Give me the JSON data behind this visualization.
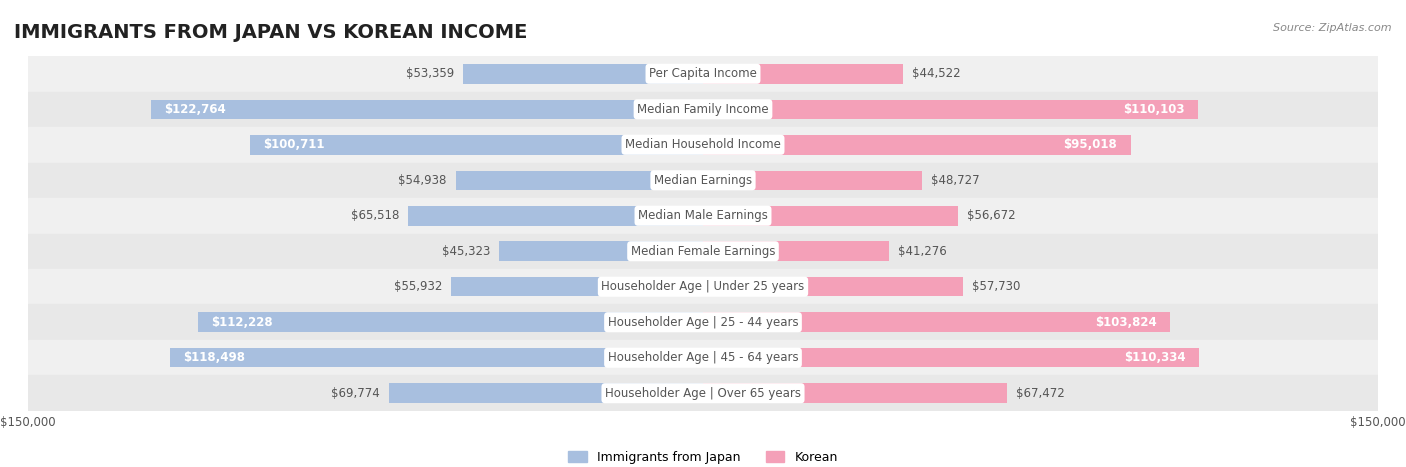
{
  "title": "IMMIGRANTS FROM JAPAN VS KOREAN INCOME",
  "source": "Source: ZipAtlas.com",
  "categories": [
    "Per Capita Income",
    "Median Family Income",
    "Median Household Income",
    "Median Earnings",
    "Median Male Earnings",
    "Median Female Earnings",
    "Householder Age | Under 25 years",
    "Householder Age | 25 - 44 years",
    "Householder Age | 45 - 64 years",
    "Householder Age | Over 65 years"
  ],
  "japan_values": [
    53359,
    122764,
    100711,
    54938,
    65518,
    45323,
    55932,
    112228,
    118498,
    69774
  ],
  "korean_values": [
    44522,
    110103,
    95018,
    48727,
    56672,
    41276,
    57730,
    103824,
    110334,
    67472
  ],
  "japan_labels": [
    "$53,359",
    "$122,764",
    "$100,711",
    "$54,938",
    "$65,518",
    "$45,323",
    "$55,932",
    "$112,228",
    "$118,498",
    "$69,774"
  ],
  "korean_labels": [
    "$44,522",
    "$110,103",
    "$95,018",
    "$48,727",
    "$56,672",
    "$41,276",
    "$57,730",
    "$103,824",
    "$110,334",
    "$67,472"
  ],
  "max_value": 150000,
  "japan_color": "#a8bfdf",
  "korean_color": "#f4a0b8",
  "japan_label_inside_color": "#ffffff",
  "korean_label_inside_color": "#ffffff",
  "japan_label_outside_color": "#555555",
  "korean_label_outside_color": "#555555",
  "japan_inside_threshold": 80000,
  "korean_inside_threshold": 80000,
  "bar_height": 0.55,
  "row_bg_odd": "#f5f5f5",
  "row_bg_even": "#eeeeee",
  "center_label_bg": "#ffffff",
  "center_label_color": "#555555",
  "legend_japan": "Immigrants from Japan",
  "legend_korean": "Korean",
  "xlim": 150000,
  "title_fontsize": 14,
  "label_fontsize": 8.5,
  "category_fontsize": 8.5,
  "axis_fontsize": 8.5
}
